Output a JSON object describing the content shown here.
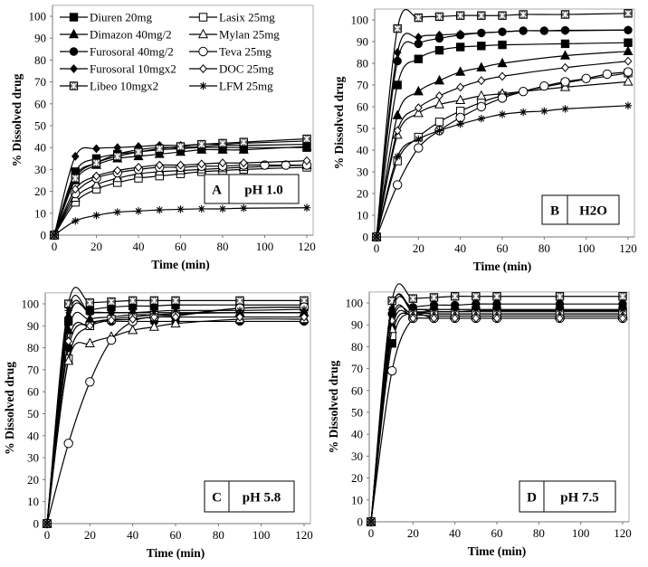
{
  "chart_data": {
    "type": "line",
    "legend": {
      "placement": "top-left of panel A",
      "entries": [
        "Diuren 20mg",
        "Lasix 25mg",
        "Dimazon 40mg/2",
        "Mylan 25mg",
        "Furosoral 40mg/2",
        "Teva 25mg",
        "Furosoral 10mgx2",
        "DOC 25mg",
        "Libeo 10mgx2",
        "LFM 25mg"
      ]
    },
    "series_styles": {
      "Diuren 20mg": "filled-square",
      "Lasix 25mg": "open-square",
      "Dimazon 40mg/2": "filled-triangle",
      "Mylan 25mg": "open-triangle",
      "Furosoral 40mg/2": "filled-circle",
      "Teva 25mg": "open-circle",
      "Furosoral 10mgx2": "filled-diamond",
      "DOC 25mg": "open-diamond",
      "Libeo 10mgx2": "crossed-square",
      "LFM 25mg": "asterisk"
    },
    "panels": [
      {
        "id": "A",
        "condition": "pH 1.0",
        "xlabel": "Time (min)",
        "ylabel": "% Dissolved drug",
        "xlim": [
          0,
          120
        ],
        "ylim": [
          0,
          105
        ],
        "xticks": [
          0,
          20,
          40,
          60,
          80,
          100,
          120
        ],
        "yticks": [
          0,
          10,
          20,
          30,
          40,
          50,
          60,
          70,
          80,
          90,
          100
        ],
        "x": [
          0,
          10,
          20,
          30,
          40,
          50,
          60,
          70,
          80,
          90,
          100,
          110,
          120
        ],
        "series": [
          {
            "name": "Diuren 20mg",
            "values": [
              0,
              29,
              35,
              37,
              38,
              39,
              39.5,
              40,
              40,
              40,
              null,
              null,
              40
            ]
          },
          {
            "name": "Dimazon 40mg/2",
            "values": [
              0,
              25,
              32,
              35,
              36,
              37,
              38,
              39,
              39,
              39,
              null,
              null,
              40.5
            ]
          },
          {
            "name": "Furosoral 40mg/2",
            "values": [
              0,
              27,
              33,
              37,
              39,
              40,
              40,
              40.5,
              41,
              41,
              null,
              null,
              41.5
            ]
          },
          {
            "name": "Furosoral 10mgx2",
            "values": [
              0,
              36,
              39.5,
              40,
              40.5,
              41,
              41,
              41.5,
              41.5,
              42,
              null,
              null,
              43
            ]
          },
          {
            "name": "Libeo 10mgx2",
            "values": [
              0,
              26,
              33,
              36,
              38,
              39.5,
              40.5,
              41.5,
              42,
              42.5,
              null,
              null,
              44
            ]
          },
          {
            "name": "Lasix 25mg",
            "values": [
              0,
              15,
              21,
              24,
              26,
              27,
              28,
              29,
              29.5,
              30,
              null,
              null,
              31
            ]
          },
          {
            "name": "Mylan 25mg",
            "values": [
              0,
              17,
              23,
              26,
              28,
              29,
              29.5,
              30,
              30.5,
              31,
              null,
              null,
              32
            ]
          },
          {
            "name": "Teva 25mg",
            "values": [
              0,
              19,
              26,
              28.5,
              30,
              31,
              31,
              31.5,
              31.5,
              32,
              32,
              32,
              32
            ]
          },
          {
            "name": "DOC 25mg",
            "values": [
              0,
              21,
              27,
              29.5,
              31,
              32,
              32,
              32.5,
              33,
              33,
              null,
              null,
              34
            ]
          },
          {
            "name": "LFM 25mg",
            "values": [
              0,
              6.5,
              9,
              10.5,
              11,
              11.5,
              11.8,
              12,
              12,
              12.3,
              null,
              null,
              12.5
            ]
          }
        ]
      },
      {
        "id": "B",
        "condition": "H2O",
        "xlabel": "Time (min)",
        "ylabel": "% Dissolved drug",
        "xlim": [
          0,
          120
        ],
        "ylim": [
          0,
          105
        ],
        "xticks": [
          0,
          20,
          40,
          60,
          80,
          100,
          120
        ],
        "yticks": [
          0,
          10,
          20,
          30,
          40,
          50,
          60,
          70,
          80,
          90,
          100
        ],
        "x": [
          0,
          10,
          20,
          30,
          40,
          50,
          60,
          70,
          80,
          90,
          100,
          110,
          120
        ],
        "series": [
          {
            "name": "Diuren 20mg",
            "values": [
              0,
              70,
              82,
              86,
              87.5,
              88,
              88.5,
              null,
              null,
              89,
              null,
              null,
              89.5
            ]
          },
          {
            "name": "Dimazon 40mg/2",
            "values": [
              0,
              56,
              67,
              72,
              76,
              78,
              80,
              null,
              null,
              83.5,
              null,
              null,
              85.5
            ]
          },
          {
            "name": "Furosoral 40mg/2",
            "values": [
              0,
              81,
              89,
              91.5,
              93,
              94,
              94.5,
              95,
              95,
              95.2,
              null,
              null,
              95.3
            ]
          },
          {
            "name": "Furosoral 10mgx2",
            "values": [
              0,
              85,
              92,
              93,
              93.5,
              94,
              94.5,
              95,
              95,
              95,
              null,
              null,
              95.3
            ]
          },
          {
            "name": "Libeo 10mgx2",
            "values": [
              0,
              96,
              101,
              101.5,
              102,
              102,
              102,
              102.5,
              null,
              102.5,
              null,
              null,
              103
            ]
          },
          {
            "name": "Lasix 25mg",
            "values": [
              0,
              35,
              46,
              53,
              58,
              62,
              65,
              null,
              null,
              71,
              null,
              null,
              75.5
            ]
          },
          {
            "name": "Mylan 25mg",
            "values": [
              0,
              47,
              57,
              61,
              63,
              65,
              66,
              null,
              null,
              69,
              null,
              null,
              71.5
            ]
          },
          {
            "name": "Teva 25mg",
            "values": [
              0,
              24,
              41,
              49,
              55,
              60,
              64,
              67,
              69.5,
              71.5,
              73,
              75,
              76
            ]
          },
          {
            "name": "DOC 25mg",
            "values": [
              0,
              49,
              59.5,
              65,
              69,
              72,
              74,
              null,
              null,
              78,
              null,
              null,
              81
            ]
          },
          {
            "name": "LFM 25mg",
            "values": [
              0,
              37,
              45,
              49,
              52,
              54.5,
              56.5,
              57.5,
              58,
              59,
              null,
              null,
              60.5
            ]
          }
        ]
      },
      {
        "id": "C",
        "condition": "pH 5.8",
        "xlabel": "Time (min)",
        "ylabel": "% Dissolved drug",
        "xlim": [
          0,
          120
        ],
        "ylim": [
          0,
          105
        ],
        "xticks": [
          0,
          20,
          40,
          60,
          80,
          100,
          120
        ],
        "yticks": [
          0,
          10,
          20,
          30,
          40,
          50,
          60,
          70,
          80,
          90,
          100
        ],
        "x": [
          0,
          10,
          20,
          30,
          40,
          50,
          60,
          90,
          120
        ],
        "series": [
          {
            "name": "Diuren 20mg",
            "values": [
              0,
              92,
              97,
              98.5,
              99,
              99,
              99.5,
              99.5,
              99.5
            ]
          },
          {
            "name": "Dimazon 40mg/2",
            "values": [
              0,
              88,
              93,
              94,
              95,
              95,
              95.5,
              96,
              96
            ]
          },
          {
            "name": "Furosoral 40mg/2",
            "values": [
              0,
              80,
              91,
              92,
              92,
              92,
              92,
              92,
              92
            ]
          },
          {
            "name": "Furosoral 10mgx2",
            "values": [
              0,
              94,
              96,
              96,
              96,
              96,
              96,
              96,
              96
            ]
          },
          {
            "name": "Libeo 10mgx2",
            "values": [
              0,
              100,
              100.5,
              101,
              101.5,
              101.5,
              101.5,
              101.5,
              101.5
            ]
          },
          {
            "name": "Lasix 25mg",
            "values": [
              0,
              75,
              90,
              93,
              94,
              95,
              95,
              98,
              98.5
            ]
          },
          {
            "name": "Mylan 25mg",
            "values": [
              0,
              74,
              82,
              85,
              88,
              89.5,
              91,
              93,
              93
            ]
          },
          {
            "name": "Teva 25mg",
            "values": [
              0,
              36.5,
              64.5,
              83.5,
              92,
              94,
              94.5,
              98,
              98.5
            ]
          },
          {
            "name": "DOC 25mg",
            "values": [
              0,
              83,
              90,
              92.5,
              93,
              94,
              94,
              94,
              94
            ]
          },
          {
            "name": "LFM 25mg",
            "values": [
              0,
              97,
              96,
              96,
              96,
              96.5,
              97,
              97,
              97.5
            ]
          }
        ]
      },
      {
        "id": "D",
        "condition": "pH 7.5",
        "xlabel": "Time (min)",
        "ylabel": "% Dissolved drug",
        "xlim": [
          0,
          120
        ],
        "ylim": [
          0,
          105
        ],
        "xticks": [
          0,
          20,
          40,
          60,
          80,
          100,
          120
        ],
        "yticks": [
          0,
          10,
          20,
          30,
          40,
          50,
          60,
          70,
          80,
          90,
          100
        ],
        "x": [
          0,
          10,
          20,
          30,
          40,
          50,
          60,
          90,
          120
        ],
        "series": [
          {
            "name": "Diuren 20mg",
            "values": [
              0,
              81.5,
              96,
              96,
              96,
              96.5,
              96.5,
              96.5,
              96.5
            ]
          },
          {
            "name": "Dimazon 40mg/2",
            "values": [
              0,
              90,
              95,
              95,
              95,
              95,
              95,
              95,
              95
            ]
          },
          {
            "name": "Furosoral 40mg/2",
            "values": [
              0,
              95,
              98,
              99,
              99,
              99.5,
              99.5,
              99.5,
              99.5
            ]
          },
          {
            "name": "Furosoral 10mgx2",
            "values": [
              0,
              97,
              96,
              96,
              96,
              96,
              96,
              96,
              96
            ]
          },
          {
            "name": "Libeo 10mgx2",
            "values": [
              0,
              101,
              102,
              102.5,
              103,
              103,
              103,
              103,
              103
            ]
          },
          {
            "name": "Lasix 25mg",
            "values": [
              0,
              85,
              95,
              95,
              95,
              95,
              95,
              95,
              95
            ]
          },
          {
            "name": "Mylan 25mg",
            "values": [
              0,
              88,
              94,
              94,
              94,
              94,
              94,
              94,
              94
            ]
          },
          {
            "name": "Teva 25mg",
            "values": [
              0,
              69,
              93,
              93,
              93,
              93,
              93,
              93,
              93
            ]
          },
          {
            "name": "DOC 25mg",
            "values": [
              0,
              92,
              93,
              93,
              93,
              93,
              93,
              93,
              93
            ]
          },
          {
            "name": "LFM 25mg",
            "values": [
              0,
              97,
              97,
              97,
              97,
              97,
              97,
              97,
              97
            ]
          }
        ]
      }
    ]
  }
}
